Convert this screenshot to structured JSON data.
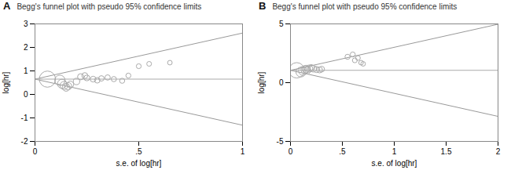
{
  "chart_data": [
    {
      "type": "scatter",
      "annotation": "A",
      "title": "Begg's funnel plot with pseudo 95% confidence limits",
      "xlabel": "s.e. of log[hr]",
      "ylabel": "log[hr]",
      "xlim": [
        0,
        1
      ],
      "ylim": [
        -2,
        3
      ],
      "xticks": [
        0,
        {
          "value": 0.5,
          "label": ".5"
        },
        1
      ],
      "yticks": [
        -2,
        -1,
        0,
        1,
        2,
        3
      ],
      "series": [
        {
          "type": "line",
          "color": "#999999",
          "x": [
            0,
            1
          ],
          "values": [
            0.65,
            2.61
          ]
        },
        {
          "type": "line",
          "color": "#999999",
          "x": [
            0,
            1
          ],
          "values": [
            0.65,
            -1.31
          ]
        },
        {
          "type": "line",
          "color": "#aaaaaa",
          "x": [
            0,
            1
          ],
          "values": [
            0.65,
            0.65
          ]
        },
        {
          "type": "scatter",
          "marker": "open circle",
          "color": "#aaaaaa",
          "x": [
            0.06,
            0.12,
            0.13,
            0.14,
            0.15,
            0.16,
            0.17,
            0.2,
            0.22,
            0.24,
            0.25,
            0.28,
            0.3,
            0.32,
            0.35,
            0.38,
            0.42,
            0.45,
            0.5,
            0.55,
            0.65
          ],
          "values": [
            0.65,
            0.6,
            0.45,
            0.38,
            0.3,
            0.35,
            0.42,
            0.55,
            0.75,
            0.8,
            0.7,
            0.65,
            0.6,
            0.68,
            0.72,
            0.65,
            0.58,
            0.8,
            1.2,
            1.3,
            1.35
          ],
          "sizes": [
            220,
            90,
            70,
            55,
            50,
            45,
            40,
            35,
            32,
            30,
            28,
            28,
            26,
            25,
            24,
            23,
            22,
            21,
            20,
            19,
            18
          ]
        }
      ]
    },
    {
      "type": "scatter",
      "annotation": "B",
      "title": "Begg's funnel plot with pseudo 95% confidence limits",
      "xlabel": "s.e. of log[hr]",
      "ylabel": "log[hr]",
      "xlim": [
        0,
        2
      ],
      "ylim": [
        -5,
        5
      ],
      "xticks": [
        0,
        {
          "value": 0.5,
          "label": ".5"
        },
        1,
        1.5,
        2
      ],
      "yticks": [
        -5,
        0,
        5
      ],
      "series": [
        {
          "type": "line",
          "color": "#999999",
          "x": [
            0,
            2
          ],
          "values": [
            1.05,
            4.97
          ]
        },
        {
          "type": "line",
          "color": "#999999",
          "x": [
            0,
            2
          ],
          "values": [
            1.05,
            -2.87
          ]
        },
        {
          "type": "line",
          "color": "#aaaaaa",
          "x": [
            0,
            2
          ],
          "values": [
            1.05,
            1.05
          ]
        },
        {
          "type": "scatter",
          "marker": "open circle",
          "color": "#aaaaaa",
          "x": [
            0.06,
            0.1,
            0.12,
            0.14,
            0.15,
            0.16,
            0.18,
            0.2,
            0.22,
            0.25,
            0.28,
            0.3,
            0.55,
            0.6,
            0.62,
            0.65,
            0.68,
            0.7
          ],
          "values": [
            1.05,
            0.9,
            1.0,
            1.1,
            1.15,
            1.05,
            1.2,
            1.25,
            1.18,
            1.12,
            1.08,
            1.15,
            2.2,
            2.4,
            1.9,
            2.1,
            1.7,
            1.6
          ],
          "sizes": [
            200,
            80,
            65,
            55,
            50,
            46,
            42,
            38,
            35,
            32,
            30,
            28,
            22,
            21,
            20,
            19,
            18,
            18
          ]
        }
      ]
    }
  ]
}
